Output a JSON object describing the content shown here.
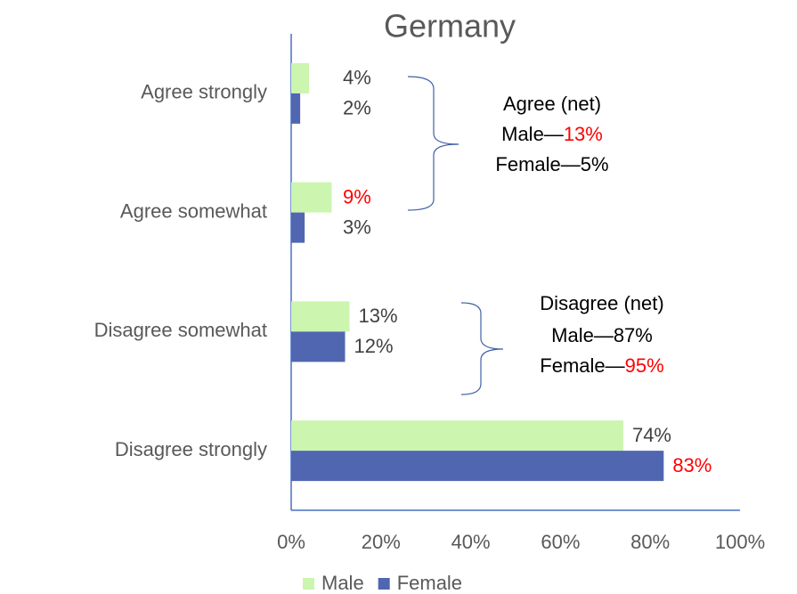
{
  "chart_data": {
    "type": "hbar",
    "title": "Germany",
    "categories": [
      "Agree strongly",
      "Agree somewhat",
      "Disagree somewhat",
      "Disagree strongly"
    ],
    "series": [
      {
        "name": "Male",
        "color": "#ccf5b0",
        "values": [
          4,
          9,
          13,
          74
        ],
        "value_labels": [
          "4%",
          "9%",
          "13%",
          "74%"
        ],
        "label_colors": [
          "#404040",
          "#ff0000",
          "#404040",
          "#404040"
        ]
      },
      {
        "name": "Female",
        "color": "#5066b0",
        "values": [
          2,
          3,
          12,
          83
        ],
        "value_labels": [
          "2%",
          "3%",
          "12%",
          "83%"
        ],
        "label_colors": [
          "#404040",
          "#404040",
          "#404040",
          "#ff0000"
        ]
      }
    ],
    "xlim": [
      0,
      100
    ],
    "xticks": [
      {
        "value": 0,
        "label": "0%"
      },
      {
        "value": 20,
        "label": "20%"
      },
      {
        "value": 40,
        "label": "40%"
      },
      {
        "value": 60,
        "label": "60%"
      },
      {
        "value": 80,
        "label": "80%"
      },
      {
        "value": 100,
        "label": "100%"
      }
    ],
    "legend": "bottom",
    "annotations": [
      {
        "lines": [
          [
            {
              "text": "Agree (net)"
            }
          ],
          [
            {
              "text": "Male—"
            },
            {
              "text": "13%",
              "color": "#ff0000"
            }
          ],
          [
            {
              "text": "Female—5%"
            }
          ]
        ]
      },
      {
        "lines": [
          [
            {
              "text": "Disagree (net)"
            }
          ],
          [
            {
              "text": "Male—87%"
            }
          ],
          [
            {
              "text": "Female—"
            },
            {
              "text": "95%",
              "color": "#ff0000"
            }
          ]
        ]
      }
    ]
  }
}
